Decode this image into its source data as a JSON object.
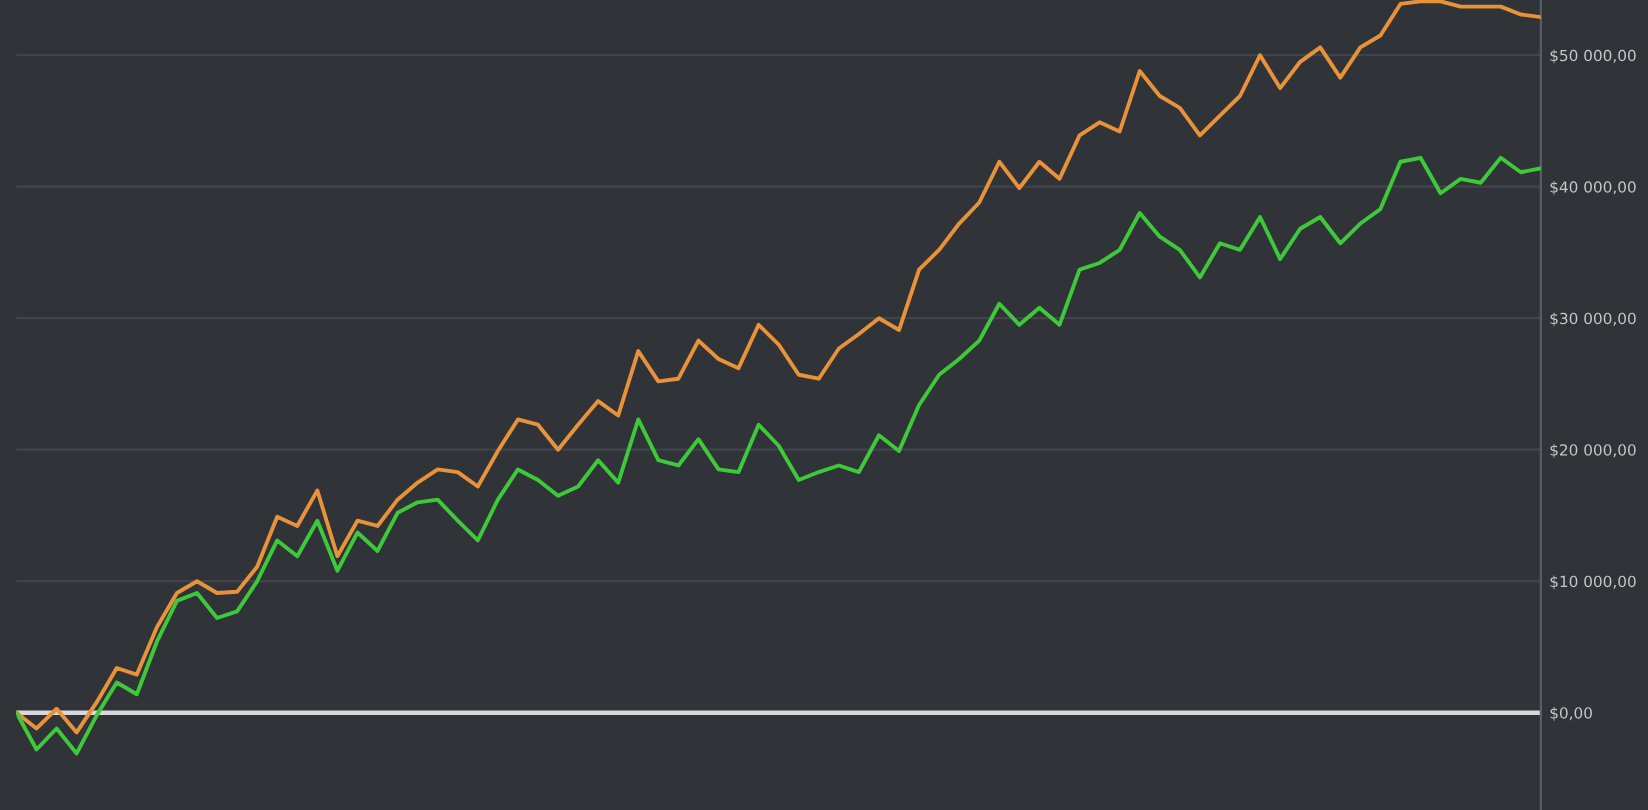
{
  "chart_data": {
    "type": "line",
    "categories": [
      null,
      null,
      null,
      null,
      null,
      null,
      null,
      null,
      null,
      null,
      null,
      null,
      null,
      null,
      null,
      null,
      null,
      null,
      null,
      null,
      null,
      null,
      null,
      null,
      null,
      null,
      null,
      null,
      null,
      null,
      null,
      null,
      null,
      null,
      null,
      null,
      null,
      null,
      null,
      null,
      null,
      null,
      null,
      null,
      null,
      null,
      null,
      null,
      null,
      null,
      null,
      null,
      null,
      null,
      null,
      null,
      null,
      null,
      null,
      null,
      null,
      null,
      null,
      null,
      null,
      null,
      null,
      null,
      null,
      null,
      null,
      null,
      null,
      null,
      null,
      null,
      null
    ],
    "series": [
      {
        "color": "#e8923a",
        "values": [
          0,
          -1200,
          300,
          -1500,
          800,
          3400,
          2900,
          6500,
          9100,
          10000,
          9100,
          9200,
          11100,
          14900,
          14200,
          16900,
          11900,
          14600,
          14200,
          16200,
          17500,
          18500,
          18300,
          17200,
          19900,
          22300,
          21900,
          20000,
          21900,
          23700,
          22600,
          27500,
          25200,
          25400,
          28300,
          26900,
          26200,
          29500,
          28000,
          25700,
          25400,
          27700,
          28800,
          30000,
          29100,
          33700,
          35200,
          37200,
          38800,
          41900,
          39900,
          41900,
          40600,
          43900,
          44900,
          44200,
          48800,
          46900,
          46000,
          43900,
          45400,
          46900,
          50000,
          47500,
          49500,
          50600,
          48300,
          50600,
          51500,
          53900,
          54100,
          54100,
          53700,
          53700,
          53700,
          53100,
          52900
        ]
      },
      {
        "color": "#3ec93a",
        "values": [
          0,
          -2800,
          -1200,
          -3100,
          -200,
          2300,
          1400,
          5400,
          8500,
          9100,
          7200,
          7700,
          10000,
          13100,
          11900,
          14600,
          10800,
          13700,
          12300,
          15200,
          16000,
          16200,
          14600,
          13100,
          16200,
          18500,
          17700,
          16500,
          17200,
          19200,
          17500,
          22300,
          19200,
          18800,
          20800,
          18500,
          18300,
          21900,
          20300,
          17700,
          18300,
          18800,
          18300,
          21100,
          19900,
          23400,
          25700,
          26900,
          28300,
          31100,
          29500,
          30800,
          29500,
          33700,
          34200,
          35200,
          38000,
          36200,
          35200,
          33100,
          35700,
          35200,
          37700,
          34500,
          36800,
          37700,
          35700,
          37200,
          38300,
          41900,
          42200,
          39500,
          40600,
          40300,
          42200,
          41100,
          41400
        ]
      }
    ],
    "ylim": [
      -7400,
      54200
    ],
    "yticks": [
      {
        "value": 0,
        "label": "$0,00"
      },
      {
        "value": 10000,
        "label": "$10 000,00"
      },
      {
        "value": 20000,
        "label": "$20 000,00"
      },
      {
        "value": 30000,
        "label": "$30 000,00"
      },
      {
        "value": 40000,
        "label": "$40 000,00"
      },
      {
        "value": 50000,
        "label": "$50 000,00"
      }
    ],
    "ref_lines": [
      {
        "axis": "y",
        "value": 0,
        "color": "#d8d8d8"
      }
    ],
    "grid": "y",
    "legend": false,
    "marker": "none",
    "line_style": "solid"
  }
}
